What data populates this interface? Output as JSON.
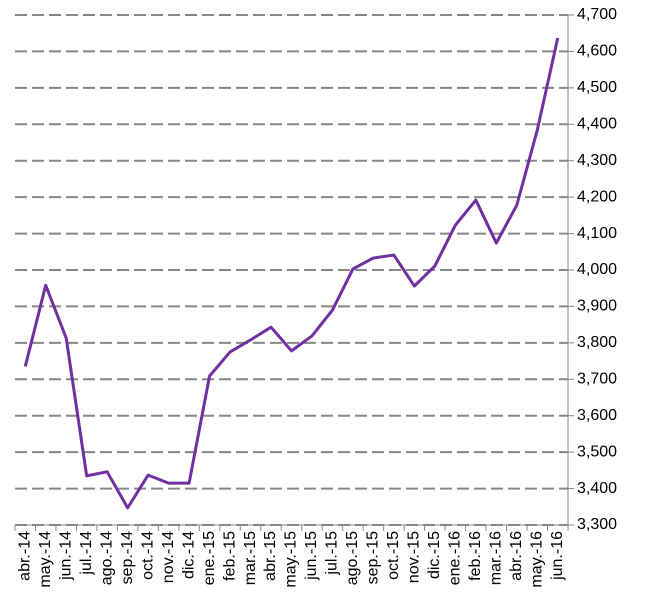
{
  "chart_data": {
    "type": "line",
    "categories": [
      "abr.-14",
      "may.-14",
      "jun.-14",
      "jul.-14",
      "ago.-14",
      "sep.-14",
      "oct.-14",
      "nov.-14",
      "dic.-14",
      "ene.-15",
      "feb.-15",
      "mar.-15",
      "abr.-15",
      "may.-15",
      "jun.-15",
      "jul.-15",
      "ago.-15",
      "sep.-15",
      "oct.-15",
      "nov.-15",
      "dic.-15",
      "ene.-16",
      "feb.-16",
      "mar.-16",
      "abr.-16",
      "may.-16",
      "jun.-16"
    ],
    "series": [
      {
        "color": "#7030a0",
        "values": [
          3735,
          3958,
          3813,
          3435,
          3446,
          3347,
          3437,
          3415,
          3415,
          3709,
          3775,
          3808,
          3843,
          3778,
          3819,
          3890,
          4003,
          4033,
          4041,
          3956,
          4011,
          4123,
          4192,
          4074,
          4178,
          4384,
          4637
        ]
      }
    ],
    "ylim": [
      3300,
      4700
    ],
    "yticks": [
      {
        "value": 3300,
        "label": "3,300"
      },
      {
        "value": 3400,
        "label": "3,400"
      },
      {
        "value": 3500,
        "label": "3,500"
      },
      {
        "value": 3600,
        "label": "3,600"
      },
      {
        "value": 3700,
        "label": "3,700"
      },
      {
        "value": 3800,
        "label": "3,800"
      },
      {
        "value": 3900,
        "label": "3,900"
      },
      {
        "value": 4000,
        "label": "4,000"
      },
      {
        "value": 4100,
        "label": "4,100"
      },
      {
        "value": 4200,
        "label": "4,200"
      },
      {
        "value": 4300,
        "label": "4,300"
      },
      {
        "value": 4400,
        "label": "4,400"
      },
      {
        "value": 4500,
        "label": "4,500"
      },
      {
        "value": 4600,
        "label": "4,600"
      },
      {
        "value": 4700,
        "label": "4,700"
      }
    ],
    "grid": true,
    "y_axis_side": "right"
  }
}
